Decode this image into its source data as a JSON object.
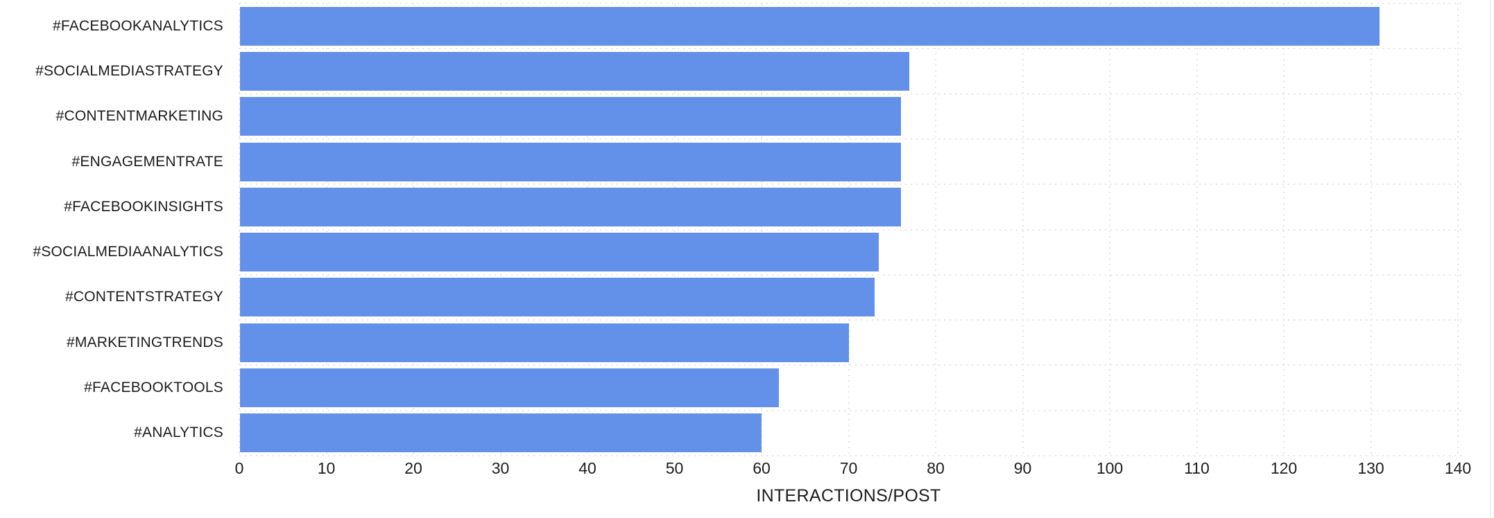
{
  "chart_data": {
    "type": "bar",
    "orientation": "horizontal",
    "title": "",
    "xlabel": "INTERACTIONS/POST",
    "ylabel": "",
    "categories": [
      "#FACEBOOKANALYTICS",
      "#SOCIALMEDIASTRATEGY",
      "#CONTENTMARKETING",
      "#ENGAGEMENTRATE",
      "#FACEBOOKINSIGHTS",
      "#SOCIALMEDIAANALYTICS",
      "#CONTENTSTRATEGY",
      "#MARKETINGTRENDS",
      "#FACEBOOKTOOLS",
      "#ANALYTICS"
    ],
    "values": [
      131,
      77,
      76,
      76,
      76,
      73.5,
      73,
      70,
      62,
      60
    ],
    "xlim": [
      0,
      140
    ],
    "xticks": [
      0,
      10,
      20,
      30,
      40,
      50,
      60,
      70,
      80,
      90,
      100,
      110,
      120,
      130,
      140
    ],
    "grid": "dotted",
    "legend": "none",
    "colors": {
      "bar": "#6391EA",
      "gridline": "#E4E4E4",
      "text": "#1C1C1C",
      "background": "#FFFFFF"
    }
  },
  "layout_labels": {
    "x_axis_title": "INTERACTIONS/POST"
  }
}
